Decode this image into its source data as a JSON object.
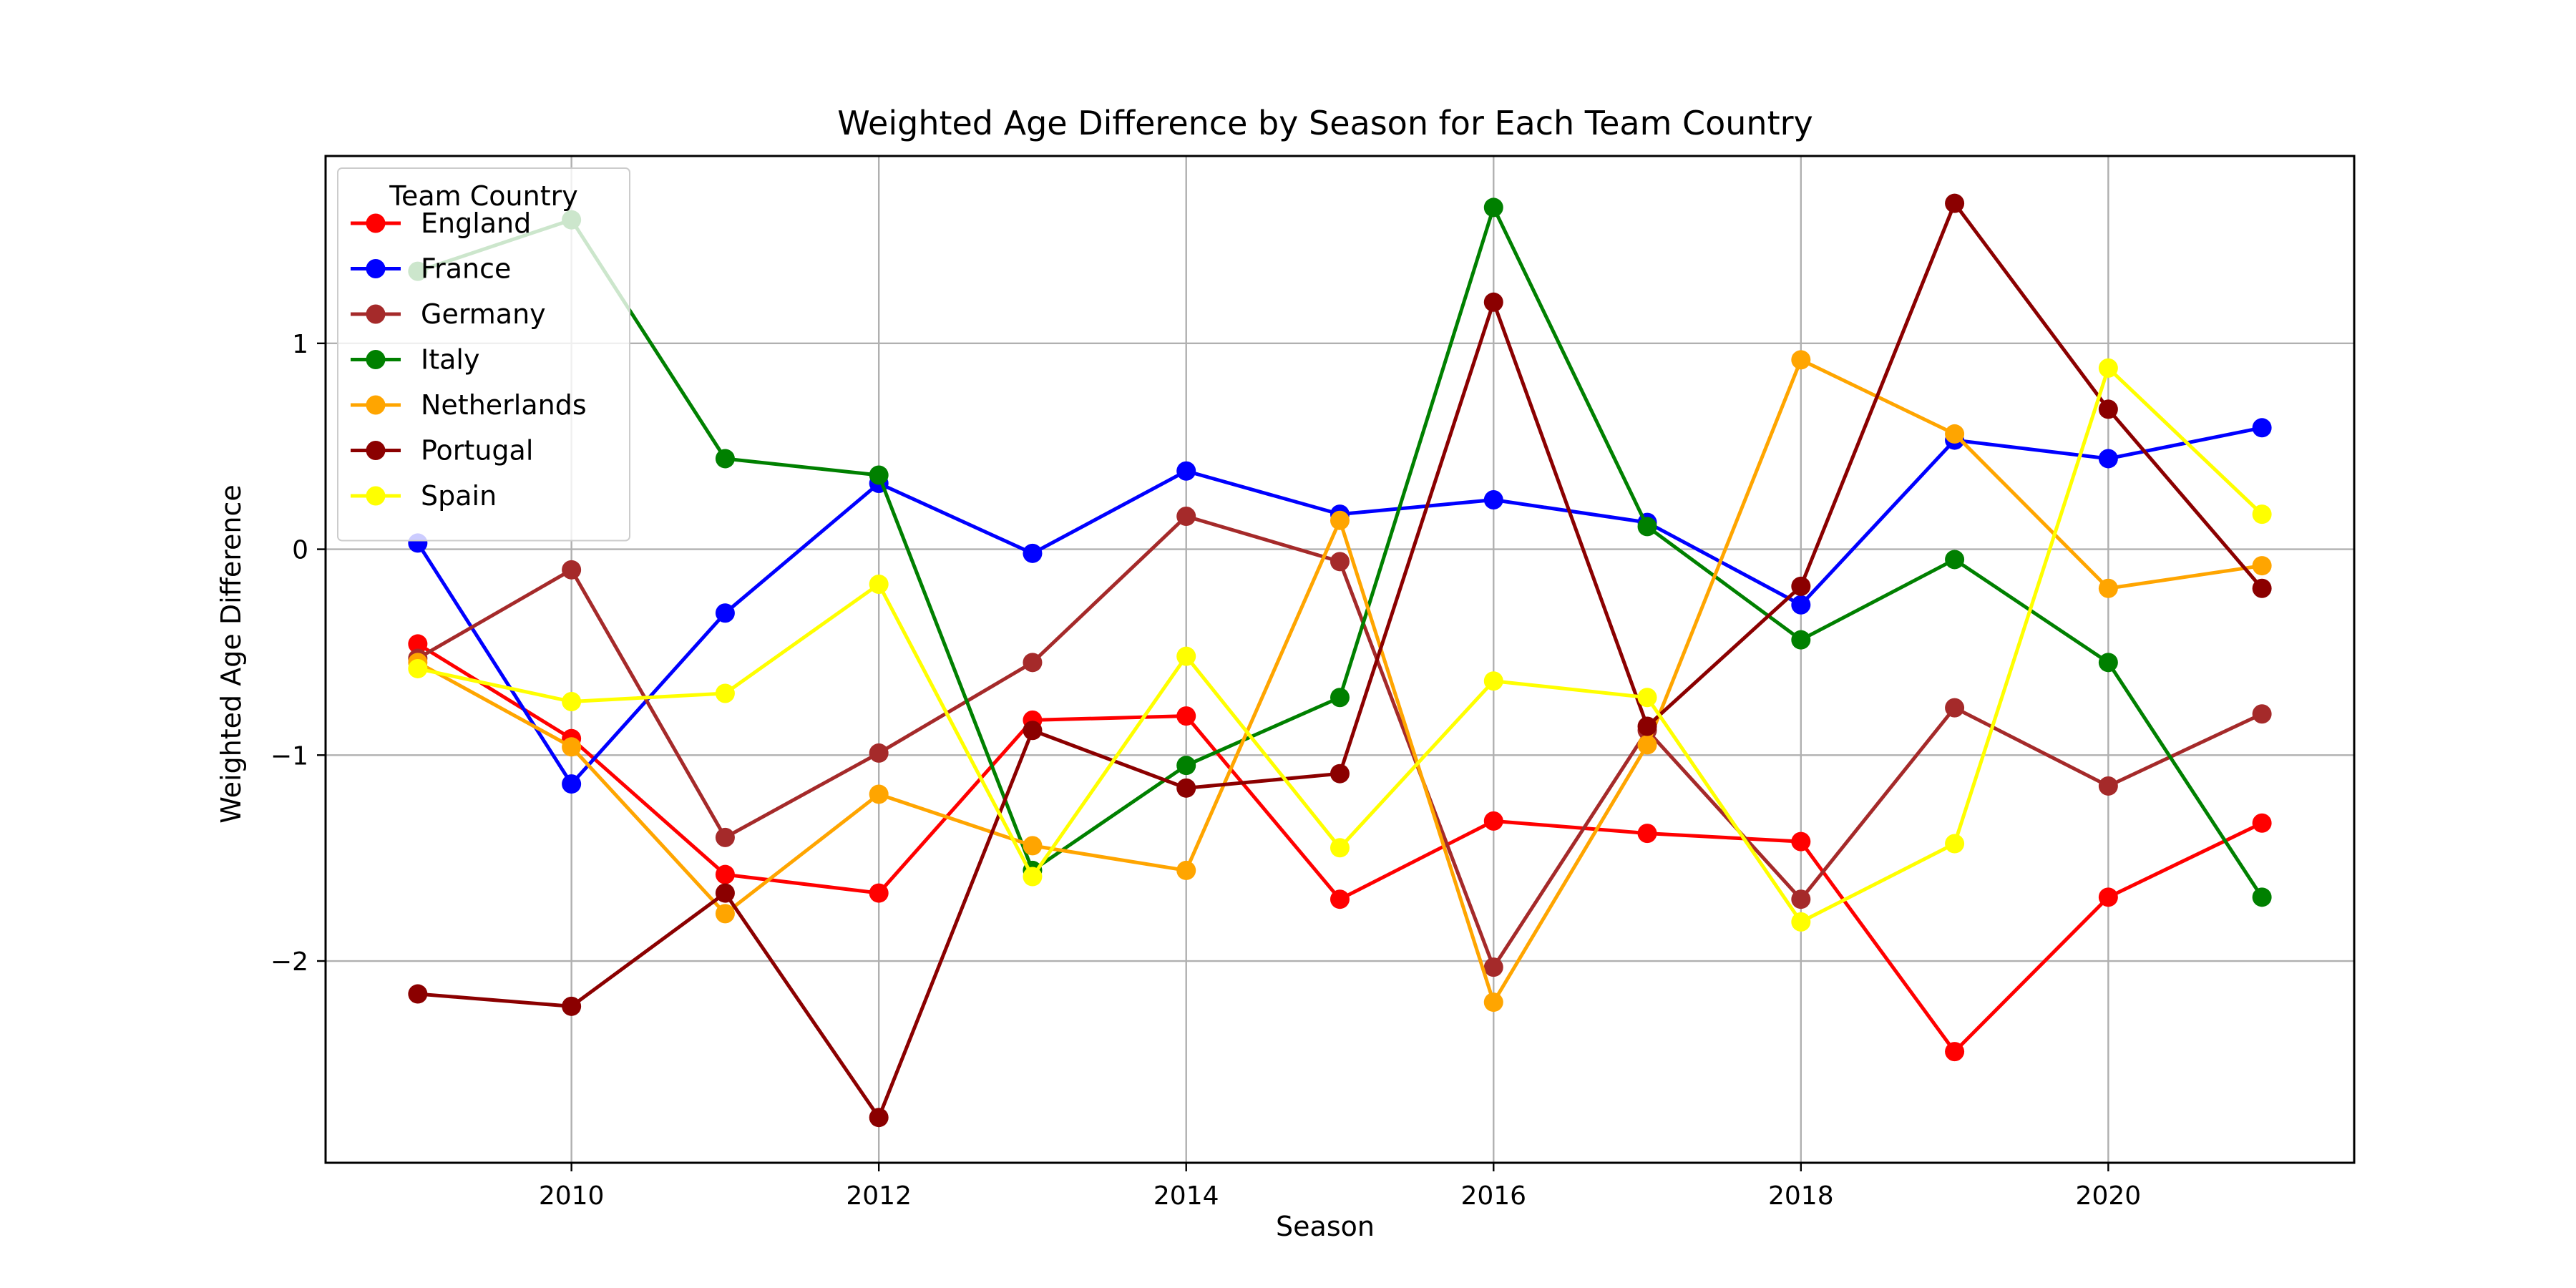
{
  "chart_data": {
    "type": "line",
    "title": "Weighted Age Difference by Season for Each Team Country",
    "xlabel": "Season",
    "ylabel": "Weighted Age Difference",
    "xlim": [
      2008.4,
      2021.6
    ],
    "ylim": [
      -2.98,
      1.91
    ],
    "x_ticks": [
      2010,
      2012,
      2014,
      2016,
      2018,
      2020
    ],
    "y_ticks": [
      -2,
      -1,
      0,
      1
    ],
    "y_tick_labels": [
      "−2",
      "−1",
      "0",
      "1"
    ],
    "grid": true,
    "legend": {
      "title": "Team Country",
      "placement": "top-left"
    },
    "x": [
      2009,
      2010,
      2011,
      2012,
      2013,
      2014,
      2015,
      2016,
      2017,
      2018,
      2019,
      2020,
      2021
    ],
    "series": [
      {
        "name": "England",
        "color": "#ff0000",
        "values": [
          -0.46,
          -0.92,
          -1.58,
          -1.67,
          -0.83,
          -0.81,
          -1.7,
          -1.32,
          -1.38,
          -1.42,
          -2.44,
          -1.69,
          -1.33
        ]
      },
      {
        "name": "France",
        "color": "#0000ff",
        "values": [
          0.03,
          -1.14,
          -0.31,
          0.32,
          -0.02,
          0.38,
          0.17,
          0.24,
          0.13,
          -0.27,
          0.53,
          0.44,
          0.59
        ]
      },
      {
        "name": "Germany",
        "color": "#a52a2a",
        "values": [
          -0.53,
          -0.1,
          -1.4,
          -0.99,
          -0.55,
          0.16,
          -0.06,
          -2.03,
          -0.88,
          -1.7,
          -0.77,
          -1.15,
          -0.8
        ]
      },
      {
        "name": "Italy",
        "color": "#008000",
        "values": [
          1.35,
          1.6,
          0.44,
          0.36,
          -1.56,
          -1.05,
          -0.72,
          1.66,
          0.11,
          -0.44,
          -0.05,
          -0.55,
          -1.69
        ]
      },
      {
        "name": "Netherlands",
        "color": "#ffa500",
        "values": [
          -0.55,
          -0.96,
          -1.77,
          -1.19,
          -1.44,
          -1.56,
          0.14,
          -2.2,
          -0.95,
          0.92,
          0.56,
          -0.19,
          -0.08
        ]
      },
      {
        "name": "Portugal",
        "color": "#8b0000",
        "values": [
          -2.16,
          -2.22,
          -1.67,
          -2.76,
          -0.88,
          -1.16,
          -1.09,
          1.2,
          -0.86,
          -0.18,
          1.68,
          0.68,
          -0.19
        ]
      },
      {
        "name": "Spain",
        "color": "#ffff00",
        "values": [
          -0.58,
          -0.74,
          -0.7,
          -0.17,
          -1.59,
          -0.52,
          -1.45,
          -0.64,
          -0.72,
          -1.81,
          -1.43,
          0.88,
          0.17
        ]
      }
    ]
  }
}
